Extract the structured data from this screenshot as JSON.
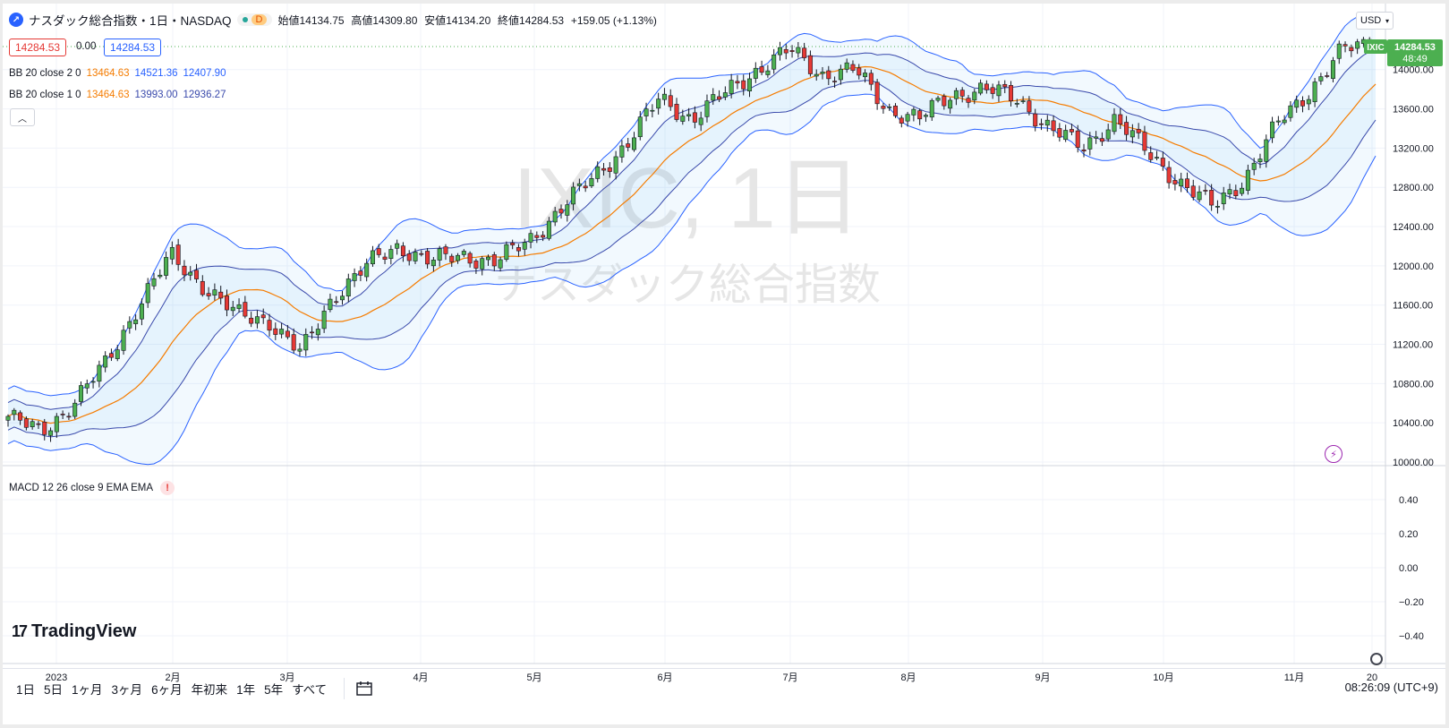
{
  "symbol": {
    "title": "ナスダック総合指数・1日・NASDAQ",
    "interval_badge": "D",
    "ohlc": [
      {
        "label": "始値",
        "value": "14134.75"
      },
      {
        "label": "高値",
        "value": "14309.80"
      },
      {
        "label": "安値",
        "value": "14134.20"
      },
      {
        "label": "終値",
        "value": "14284.53"
      }
    ],
    "change": "+159.05 (+1.13%)",
    "sell_price": "14284.53",
    "spread": "0.00",
    "buy_price": "14284.53"
  },
  "indicators": {
    "bb2": {
      "label": "BB 20 close 2 0",
      "basis": "13464.63",
      "upper": "14521.36",
      "lower": "12407.90"
    },
    "bb1": {
      "label": "BB 20 close 1 0",
      "basis": "13464.63",
      "upper": "13993.00",
      "lower": "12936.27"
    },
    "macd": {
      "label": "MACD 12 26 close 9 EMA EMA",
      "warning": "!"
    }
  },
  "watermark": {
    "line1": "IXIC, 1日",
    "line2": "ナスダック総合指数"
  },
  "currency": "USD",
  "last_price": {
    "ticker": "IXIC",
    "price": "14284.53",
    "countdown": "48:49"
  },
  "price_axis": [
    "14000.00",
    "13600.00",
    "13200.00",
    "12800.00",
    "12400.00",
    "12000.00",
    "11600.00",
    "11200.00",
    "10800.00",
    "10400.00",
    "10000.00"
  ],
  "macd_axis": [
    "0.40",
    "0.20",
    "0.00",
    "−0.20",
    "−0.40"
  ],
  "time_axis": [
    "2023",
    "2月",
    "3月",
    "4月",
    "5月",
    "6月",
    "7月",
    "8月",
    "9月",
    "10月",
    "11月",
    "20"
  ],
  "brand": "TradingView",
  "ranges": [
    "1日",
    "5日",
    "1ヶ月",
    "3ヶ月",
    "6ヶ月",
    "年初来",
    "1年",
    "5年",
    "すべて"
  ],
  "clock": "08:26:09 (UTC+9)",
  "colors": {
    "up": "#4caf50",
    "down": "#e53935",
    "basis": "#f57c00",
    "band": "#2962ff",
    "band_inner": "#3949ab"
  },
  "chart_data": {
    "type": "candlestick",
    "series_name": "IXIC",
    "x_labels": [
      "2023",
      "2月",
      "3月",
      "4月",
      "5月",
      "6月",
      "7月",
      "8月",
      "9月",
      "10月",
      "11月",
      "20"
    ],
    "ylim": [
      10000,
      14600
    ],
    "close_estimates": [
      10466,
      10300,
      10600,
      11000,
      11600,
      12100,
      11800,
      11500,
      11450,
      11100,
      11700,
      12000,
      12200,
      12050,
      12100,
      12050,
      12250,
      12600,
      12900,
      13250,
      13700,
      13500,
      13750,
      14000,
      14200,
      13950,
      14000,
      13600,
      13500,
      13750,
      13800,
      13700,
      13400,
      13200,
      13500,
      13150,
      12850,
      12600,
      12900,
      13450,
      13800,
      14200,
      14284.53
    ],
    "bollinger_2sd": {
      "basis": 13464.63,
      "upper": 14521.36,
      "lower": 12407.9
    },
    "bollinger_1sd": {
      "basis": 13464.63,
      "upper": 13993.0,
      "lower": 12936.27
    }
  }
}
